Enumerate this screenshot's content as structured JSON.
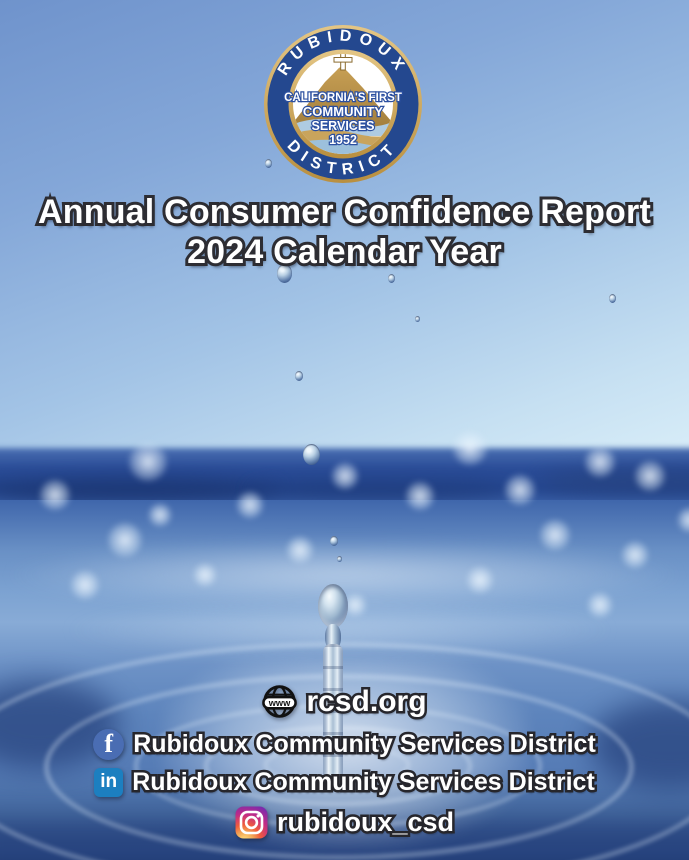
{
  "seal": {
    "name_top": "RUBIDOUX",
    "name_bottom": "DISTRICT",
    "tagline_line1": "CALIFORNIA'S FIRST",
    "tagline_line2": "COMMUNITY",
    "tagline_line3": "SERVICES",
    "founded_year": "1952"
  },
  "title": {
    "line1": "Annual Consumer Confidence Report",
    "line2": "2024 Calendar Year"
  },
  "footer": {
    "globe_label": "www",
    "website": "rcsd.org",
    "facebook_icon_letter": "f",
    "facebook_name": "Rubidoux Community Services District",
    "linkedin_icon_letters": "in",
    "linkedin_name": "Rubidoux Community Services District",
    "instagram_handle": "rubidoux_csd"
  },
  "colors": {
    "facebook": "#4a6db3",
    "linkedin": "#1c7fc0",
    "seal-blue": "#24488f",
    "seal-gold": "#c9a45c",
    "sky-top": "#6f93cc",
    "sea-dark": "#24468f",
    "text-outline": "#2d2d33"
  }
}
